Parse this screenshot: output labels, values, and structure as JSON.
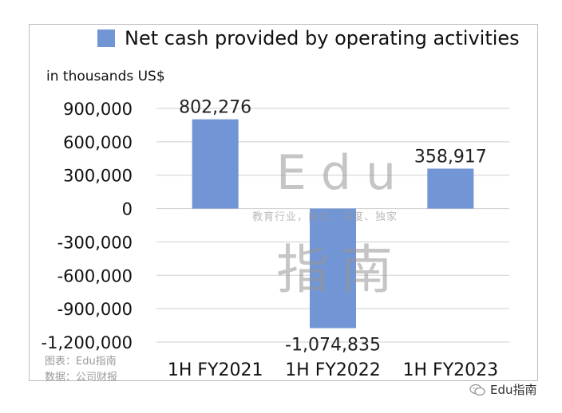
{
  "colors": {
    "bar": "#7295d6",
    "grid": "#cfcfcf"
  },
  "chart_data": {
    "type": "bar",
    "categories": [
      "1H FY2021",
      "1H FY2022",
      "1H FY2023"
    ],
    "series": [
      {
        "name": "Net cash provided by operating activities",
        "values": [
          802276,
          -1074835,
          358917
        ]
      }
    ],
    "data_labels": [
      "802,276",
      "-1,074,835",
      "358,917"
    ],
    "ylabel": "in thousands US$",
    "ylim": [
      -1200000,
      900000
    ],
    "yticks": [
      900000,
      600000,
      300000,
      0,
      -300000,
      -600000,
      -900000,
      -1200000
    ],
    "ytick_labels": [
      "900,000",
      "600,000",
      "300,000",
      "0",
      "-300,000",
      "-600,000",
      "-900,000",
      "-1,200,000"
    ],
    "grid": true,
    "legend": "top"
  },
  "watermark": {
    "latin": "Edu",
    "tagline": "教育行业，前沿、深度、独家",
    "chinese": "指南"
  },
  "captions": {
    "chart": "图表：Edu指南",
    "source": "数据：公司财报"
  },
  "brand": {
    "label": "Edu指南",
    "icon": "wechat-icon"
  }
}
